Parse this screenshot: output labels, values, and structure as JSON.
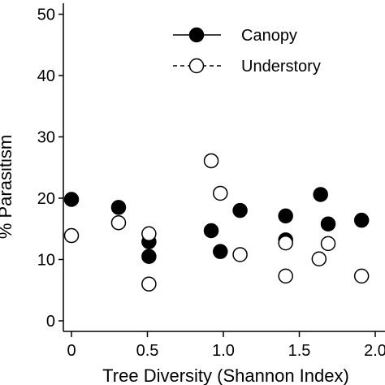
{
  "chart_data": {
    "type": "scatter",
    "title": "",
    "xlabel": "Tree Diversity (Shannon Index)",
    "ylabel": "% Parasitism",
    "xlim": [
      -0.05,
      2.0
    ],
    "ylim": [
      -1,
      52
    ],
    "x_ticks": [
      "0",
      "0.5",
      "1.0",
      "1.5",
      "2.0"
    ],
    "x_tick_values": [
      0,
      0.5,
      1.0,
      1.5,
      2.0
    ],
    "y_ticks": [
      "0",
      "10",
      "20",
      "30",
      "40",
      "50"
    ],
    "y_tick_values": [
      0,
      10,
      20,
      30,
      40,
      50
    ],
    "grid": false,
    "legend_position": "top-right",
    "series": [
      {
        "name": "Canopy",
        "marker": "filled-circle",
        "color": "#000000",
        "points": [
          [
            0.0,
            19.8
          ],
          [
            0.31,
            18.5
          ],
          [
            0.51,
            12.9
          ],
          [
            0.51,
            10.5
          ],
          [
            0.92,
            14.7
          ],
          [
            0.98,
            11.3
          ],
          [
            1.11,
            18.0
          ],
          [
            1.41,
            17.1
          ],
          [
            1.41,
            13.2
          ],
          [
            1.64,
            20.6
          ],
          [
            1.69,
            15.8
          ],
          [
            1.91,
            16.4
          ]
        ]
      },
      {
        "name": "Understory",
        "marker": "open-circle",
        "color": "#000000",
        "points": [
          [
            0.0,
            13.9
          ],
          [
            0.31,
            16.0
          ],
          [
            0.51,
            14.2
          ],
          [
            0.51,
            6.0
          ],
          [
            0.92,
            26.1
          ],
          [
            0.98,
            20.8
          ],
          [
            1.11,
            10.8
          ],
          [
            1.41,
            12.7
          ],
          [
            1.41,
            7.3
          ],
          [
            1.63,
            10.1
          ],
          [
            1.69,
            12.6
          ],
          [
            1.91,
            7.3
          ]
        ]
      }
    ]
  }
}
